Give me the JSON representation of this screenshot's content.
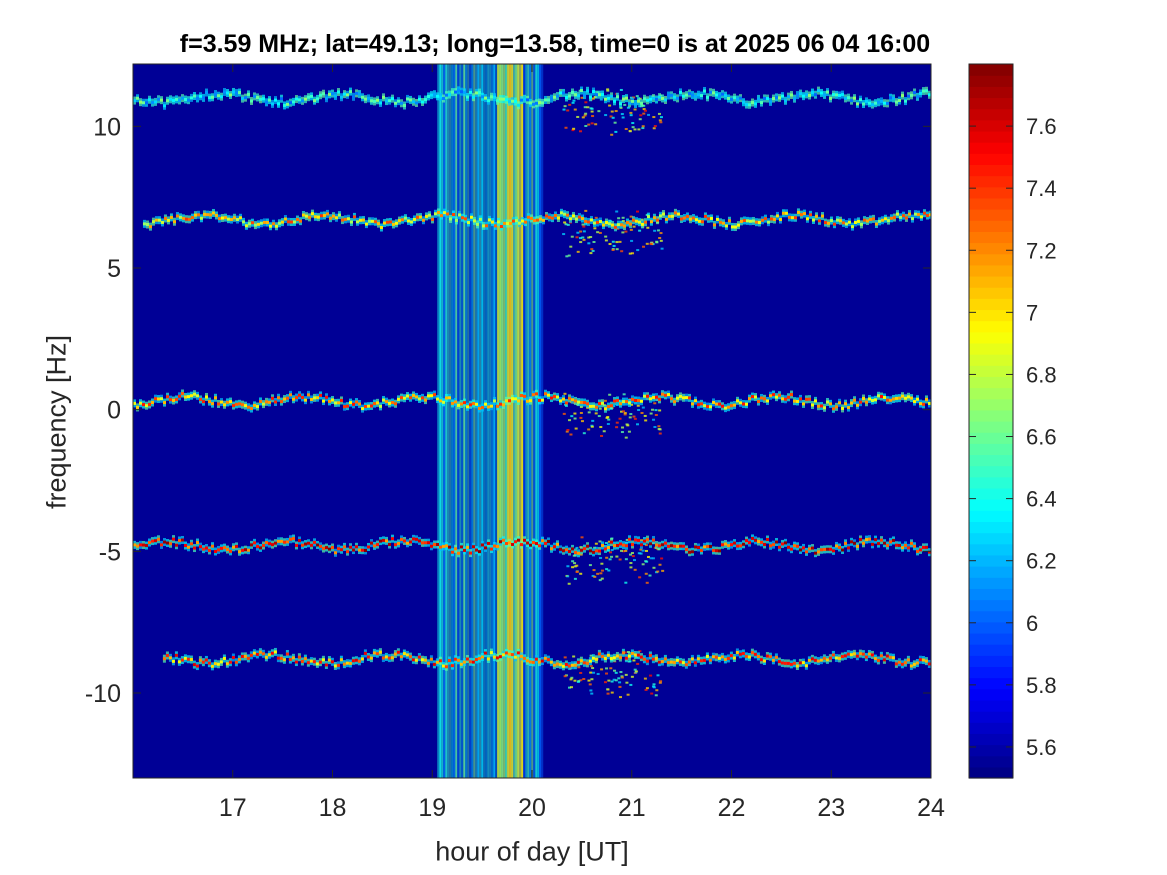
{
  "chart_data": {
    "type": "heatmap",
    "title": "f=3.59 MHz;  lat=49.13; long=13.58, time=0 is at 2025 06 04 16:00",
    "xlabel": "hour of day [UT]",
    "ylabel": "frequency [Hz]",
    "xlim": [
      16,
      24
    ],
    "ylim": [
      -13,
      12.2
    ],
    "xticks": [
      17,
      18,
      19,
      20,
      21,
      22,
      23,
      24
    ],
    "xtick_labels": [
      "17",
      "18",
      "19",
      "20",
      "21",
      "22",
      "23",
      "24"
    ],
    "yticks": [
      -10,
      -5,
      0,
      5,
      10
    ],
    "ytick_labels": [
      "-10",
      "-5",
      "0",
      "5",
      "10"
    ],
    "colorbar": {
      "colormap": "jet",
      "range": [
        5.5,
        7.8
      ],
      "ticks": [
        5.6,
        5.8,
        6,
        6.2,
        6.4,
        6.6,
        6.8,
        7,
        7.2,
        7.4,
        7.6
      ],
      "tick_labels": [
        "5.6",
        "5.8",
        "6",
        "6.2",
        "6.4",
        "6.6",
        "6.8",
        "7",
        "7.2",
        "7.4",
        "7.6"
      ]
    },
    "background_value": 5.55,
    "traces": [
      {
        "center_hz": 11.0,
        "start_hour": 16.0,
        "intensity": 6.5
      },
      {
        "center_hz": 6.7,
        "start_hour": 16.1,
        "intensity": 7.2
      },
      {
        "center_hz": 0.3,
        "start_hour": 16.0,
        "intensity": 7.3
      },
      {
        "center_hz": -4.8,
        "start_hour": 16.0,
        "intensity": 7.6
      },
      {
        "center_hz": -8.8,
        "start_hour": 16.3,
        "intensity": 7.4
      }
    ],
    "broadband_noise": [
      {
        "start_hour": 19.05,
        "end_hour": 20.1,
        "intensity": 6.3
      },
      {
        "start_hour": 19.65,
        "end_hour": 19.9,
        "intensity": 6.9
      }
    ],
    "disturbance_region": {
      "start_hour": 20.3,
      "end_hour": 21.3,
      "intensity": 7.5
    }
  }
}
